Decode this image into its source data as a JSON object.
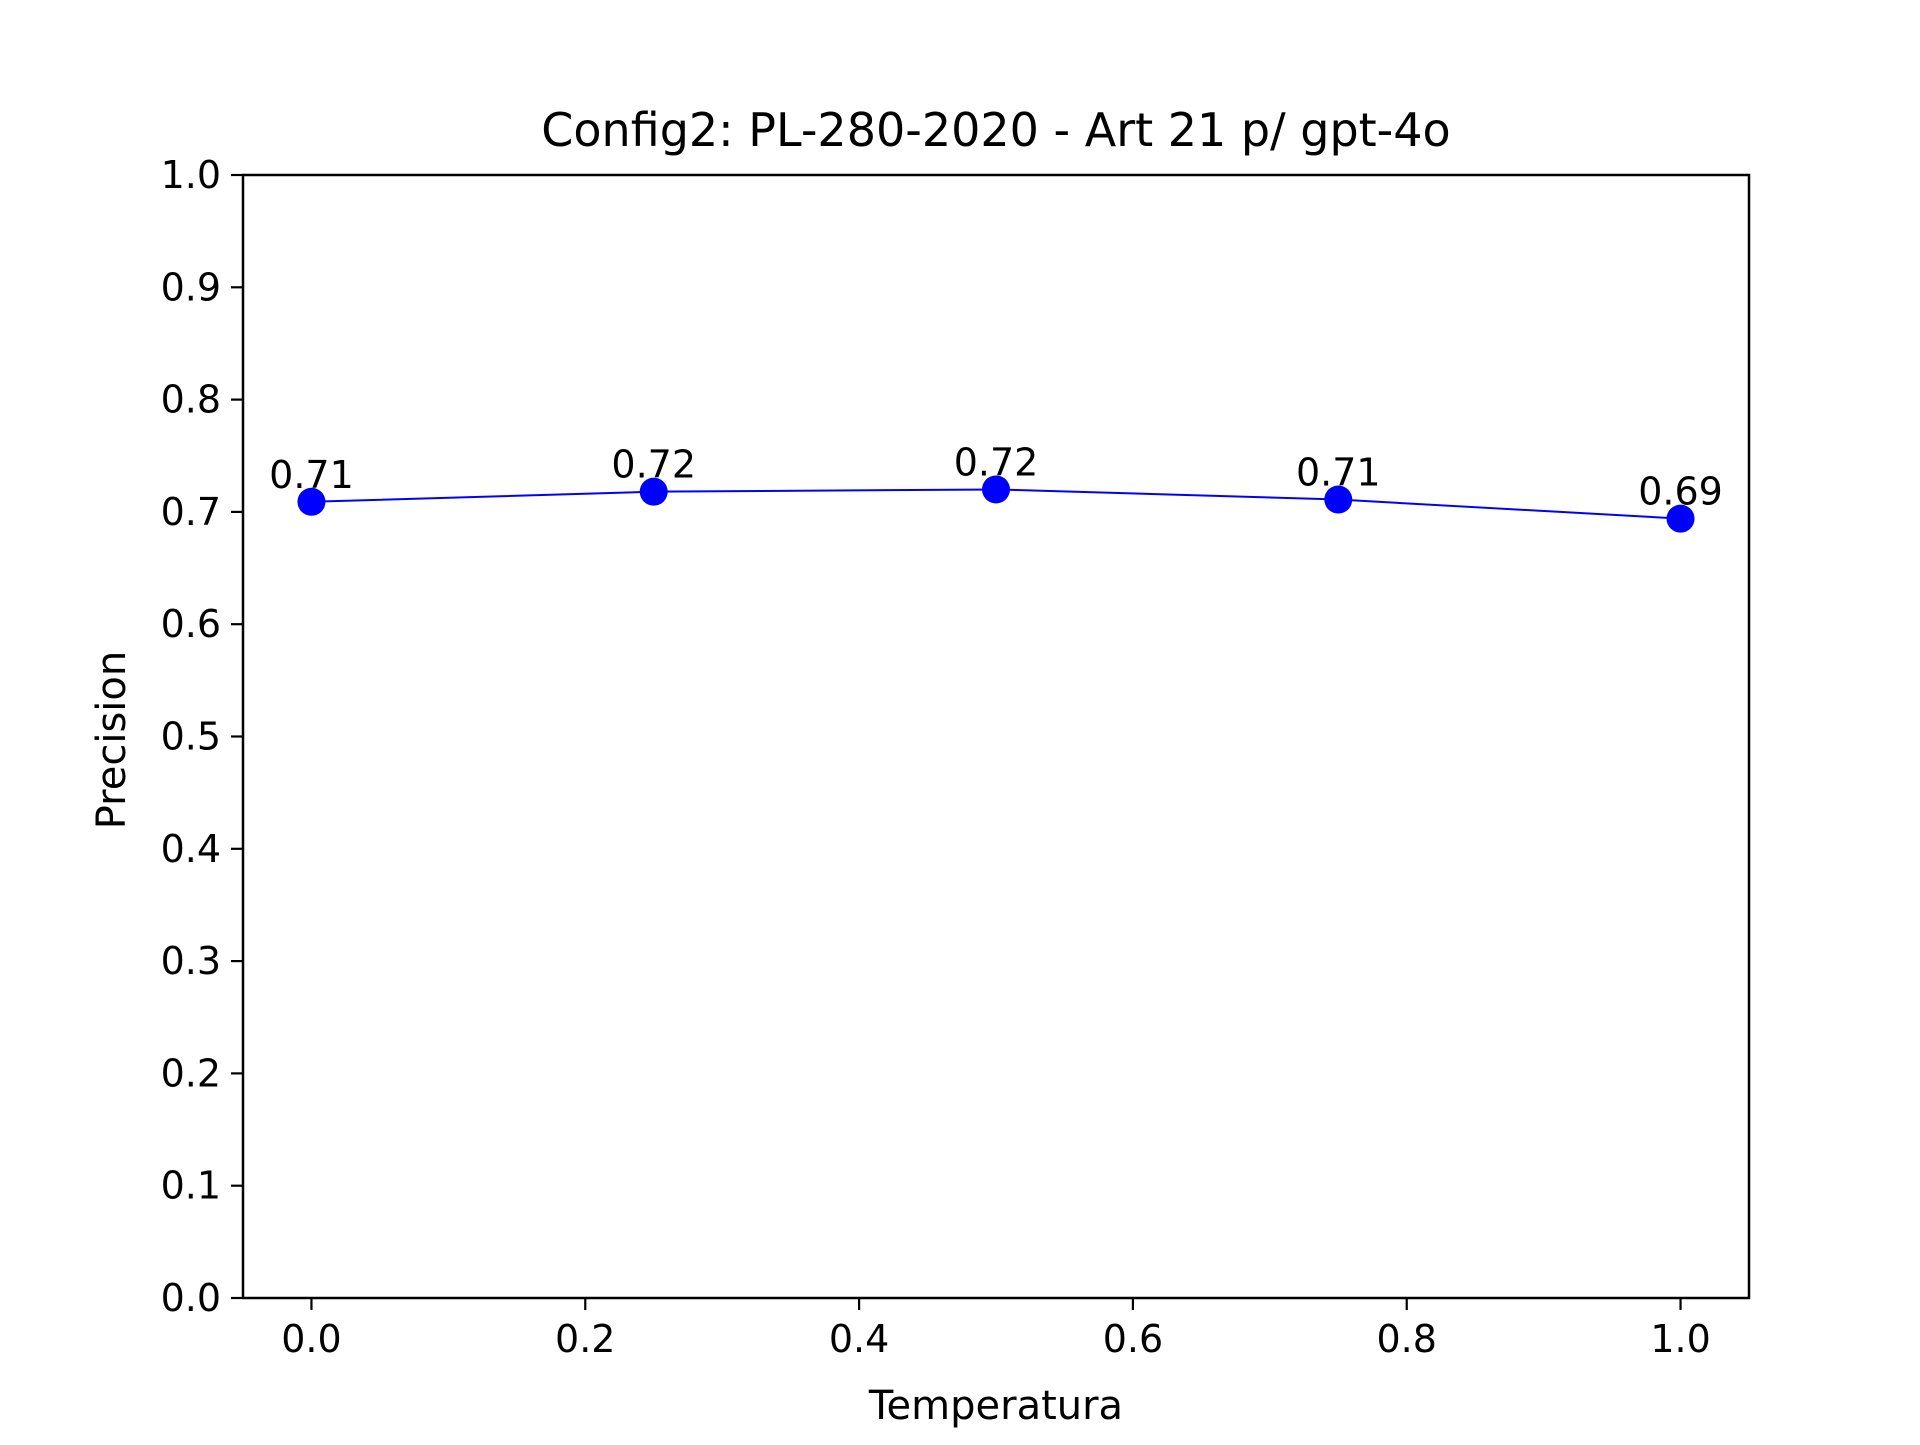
{
  "chart_data": {
    "type": "line",
    "title": "Config2: PL-280-2020 - Art 21 p/ gpt-4o",
    "xlabel": "Temperatura",
    "ylabel": "Precision",
    "x": [
      0.0,
      0.25,
      0.5,
      0.75,
      1.0
    ],
    "series": [
      {
        "values": [
          0.709,
          0.718,
          0.72,
          0.711,
          0.694
        ],
        "labels": [
          "0.71",
          "0.72",
          "0.72",
          "0.71",
          "0.69"
        ],
        "color": "#0000ff",
        "marker": "circle"
      }
    ],
    "xlim": [
      -0.05,
      1.05
    ],
    "ylim": [
      0.0,
      1.0
    ],
    "xticks": [
      "0.0",
      "0.2",
      "0.4",
      "0.6",
      "0.8",
      "1.0"
    ],
    "xtick_values": [
      0.0,
      0.2,
      0.4,
      0.6,
      0.8,
      1.0
    ],
    "yticks": [
      "0.0",
      "0.1",
      "0.2",
      "0.3",
      "0.4",
      "0.5",
      "0.6",
      "0.7",
      "0.8",
      "0.9",
      "1.0"
    ],
    "ytick_values": [
      0.0,
      0.1,
      0.2,
      0.3,
      0.4,
      0.5,
      0.6,
      0.7,
      0.8,
      0.9,
      1.0
    ],
    "grid": false,
    "legend": "none"
  }
}
